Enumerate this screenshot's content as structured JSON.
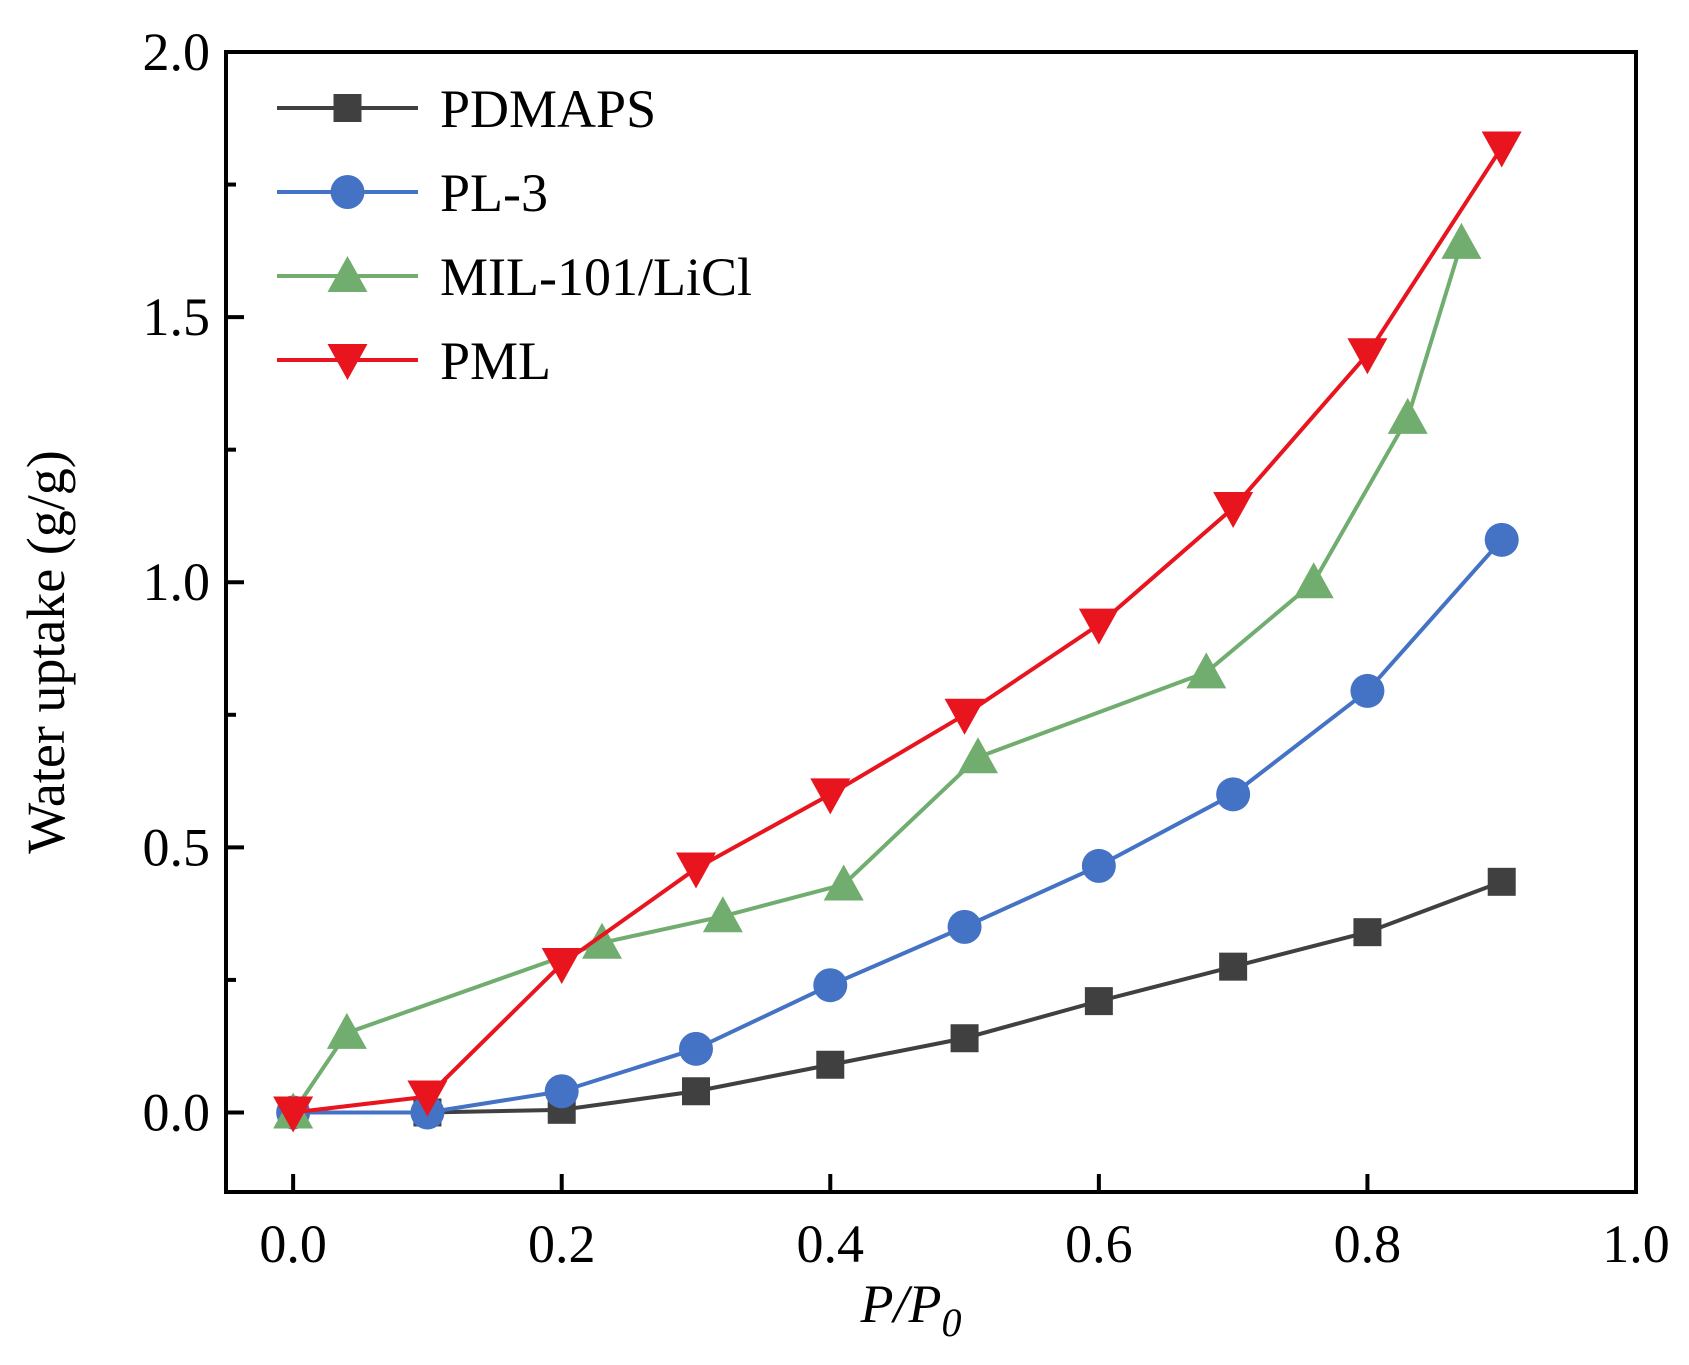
{
  "chart_data": {
    "type": "line",
    "title": "",
    "xlabel": "P/P",
    "xlabel_subscript": "0",
    "ylabel": "Water uptake (g/g)",
    "xlim": [
      -0.05,
      1.0
    ],
    "ylim": [
      -0.15,
      2.0
    ],
    "xticks": [
      0.0,
      0.2,
      0.4,
      0.6,
      0.8,
      1.0
    ],
    "xtick_labels": [
      "0.0",
      "0.2",
      "0.4",
      "0.6",
      "0.8",
      "1.0"
    ],
    "yticks": [
      0.0,
      0.5,
      1.0,
      1.5,
      2.0
    ],
    "ytick_labels": [
      "0.0",
      "0.5",
      "1.0",
      "1.5",
      "2.0"
    ],
    "y_minor_ticks": [
      0.25,
      0.75,
      1.25,
      1.75
    ],
    "grid": false,
    "legend_position": "top-left",
    "series": [
      {
        "name": "PDMAPS",
        "marker": "square",
        "color": "#404040",
        "x": [
          0.0,
          0.1,
          0.2,
          0.3,
          0.4,
          0.5,
          0.6,
          0.7,
          0.8,
          0.9
        ],
        "y": [
          0.0,
          0.0,
          0.005,
          0.04,
          0.09,
          0.14,
          0.21,
          0.275,
          0.34,
          0.435
        ]
      },
      {
        "name": "PL-3",
        "marker": "circle",
        "color": "#4472C4",
        "x": [
          0.0,
          0.1,
          0.2,
          0.3,
          0.4,
          0.5,
          0.6,
          0.7,
          0.8,
          0.9
        ],
        "y": [
          0.0,
          0.0,
          0.04,
          0.12,
          0.24,
          0.35,
          0.465,
          0.6,
          0.795,
          1.08
        ]
      },
      {
        "name": "MIL-101/LiCl",
        "marker": "triangle-up",
        "color": "#70AD6F",
        "x": [
          0.0,
          0.04,
          0.23,
          0.32,
          0.41,
          0.51,
          0.68,
          0.76,
          0.83,
          0.87
        ],
        "y": [
          0.0,
          0.15,
          0.32,
          0.37,
          0.43,
          0.67,
          0.83,
          1.0,
          1.31,
          1.64
        ]
      },
      {
        "name": "PML",
        "marker": "triangle-down",
        "color": "#E8141E",
        "x": [
          0.0,
          0.1,
          0.2,
          0.3,
          0.4,
          0.5,
          0.6,
          0.7,
          0.8,
          0.9
        ],
        "y": [
          0.0,
          0.03,
          0.28,
          0.46,
          0.6,
          0.75,
          0.92,
          1.14,
          1.43,
          1.82
        ]
      }
    ]
  }
}
